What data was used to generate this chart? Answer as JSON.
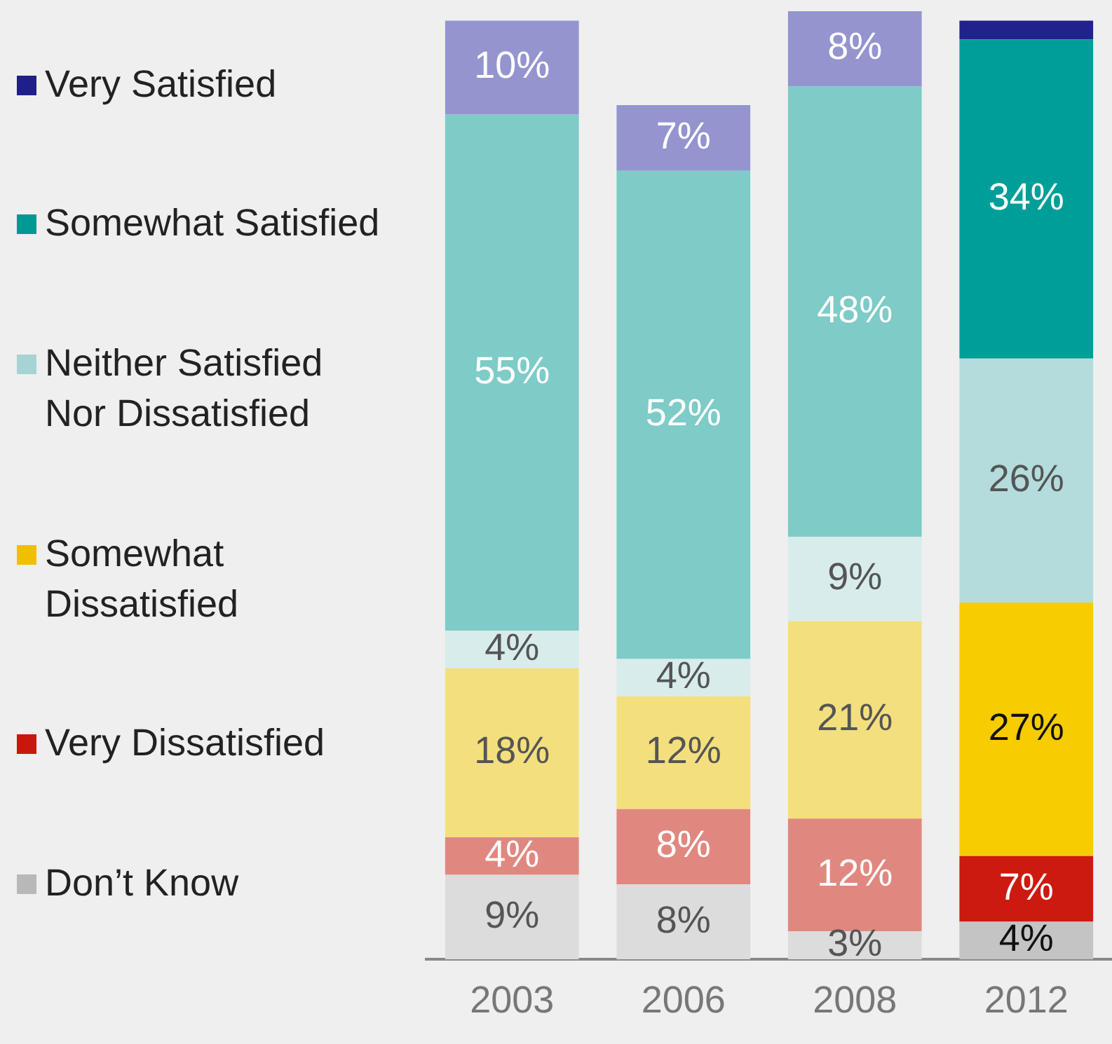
{
  "chart_data": {
    "type": "bar",
    "stacked": true,
    "categories": [
      "2003",
      "2006",
      "2008",
      "2012"
    ],
    "tick_labels": "x",
    "grid": false,
    "legend": "left",
    "series": [
      {
        "name": "Don’t Know",
        "color": "#b8b8b8",
        "colors": [
          "#dcdcdc",
          "#dcdcdc",
          "#dcdcdc",
          "#c4c4c4"
        ],
        "values": [
          9,
          8,
          3,
          4
        ],
        "value_labels": [
          "9%",
          "8%",
          "3%",
          "4%"
        ]
      },
      {
        "name": "Very Dissatisfied",
        "color": "#c8180e",
        "colors": [
          "#e08880",
          "#e08880",
          "#e08880",
          "#cc1a10"
        ],
        "values": [
          4,
          8,
          12,
          7
        ],
        "value_labels": [
          "4%",
          "8%",
          "12%",
          "7%"
        ]
      },
      {
        "name": "Somewhat Dissatisfied",
        "color": "#f0c000",
        "colors": [
          "#f3df7e",
          "#f3df7e",
          "#f3df7e",
          "#f7cc00"
        ],
        "values": [
          18,
          12,
          21,
          27
        ],
        "value_labels": [
          "18%",
          "12%",
          "21%",
          "27%"
        ]
      },
      {
        "name": "Neither Satisfied Nor Dissatisfied",
        "color": "#a6d4d4",
        "colors": [
          "#d8ecec",
          "#d8ecec",
          "#d8ecec",
          "#b4dcdc"
        ],
        "values": [
          4,
          4,
          9,
          26
        ],
        "value_labels": [
          "4%",
          "4%",
          "9%",
          "26%"
        ]
      },
      {
        "name": "Somewhat Satisfied",
        "color": "#009a94",
        "colors": [
          "#7ecbc7",
          "#7ecbc7",
          "#7ecbc7",
          "#009e98"
        ],
        "values": [
          55,
          52,
          48,
          34
        ],
        "value_labels": [
          "55%",
          "52%",
          "48%",
          "34%"
        ]
      },
      {
        "name": "Very Satisfied",
        "color": "#1f1f8a",
        "colors": [
          "#9494cf",
          "#9494cf",
          "#9494cf",
          "#22228c"
        ],
        "values": [
          10,
          7,
          8,
          2
        ],
        "value_labels": [
          "10%",
          "7%",
          "8%",
          null
        ]
      }
    ]
  }
}
